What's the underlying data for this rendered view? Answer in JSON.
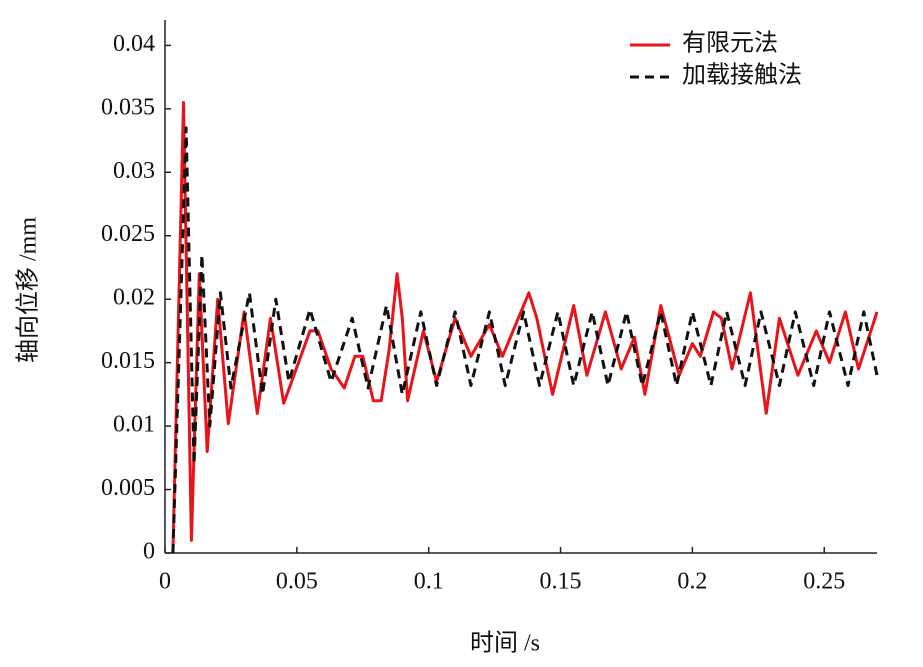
{
  "chart_data": {
    "type": "line",
    "xlabel": "时间 /s",
    "ylabel": "轴向位移 /mm",
    "xlim": [
      0,
      0.27
    ],
    "xticks": [
      0,
      0.05,
      0.1,
      0.15,
      0.2,
      0.25
    ],
    "ylim": [
      0,
      0.042
    ],
    "yticks": [
      0,
      0.005,
      0.01,
      0.015,
      0.02,
      0.025,
      0.03,
      0.035,
      0.04
    ],
    "legend": "upper right",
    "series": [
      {
        "name": "有限元法",
        "color": "#e8141a",
        "dash": "solid",
        "x": [
          0.003,
          0.007,
          0.01,
          0.013,
          0.016,
          0.02,
          0.024,
          0.03,
          0.035,
          0.04,
          0.045,
          0.048,
          0.055,
          0.058,
          0.063,
          0.068,
          0.072,
          0.075,
          0.079,
          0.082,
          0.085,
          0.088,
          0.09,
          0.092,
          0.098,
          0.103,
          0.11,
          0.116,
          0.123,
          0.128,
          0.138,
          0.141,
          0.147,
          0.155,
          0.16,
          0.167,
          0.173,
          0.178,
          0.182,
          0.188,
          0.195,
          0.2,
          0.203,
          0.208,
          0.211,
          0.215,
          0.222,
          0.228,
          0.233,
          0.24,
          0.247,
          0.252,
          0.258,
          0.263,
          0.27
        ],
        "values": [
          0,
          0.0355,
          0.001,
          0.022,
          0.008,
          0.02,
          0.0102,
          0.019,
          0.011,
          0.0185,
          0.0118,
          0.0135,
          0.0175,
          0.0175,
          0.0145,
          0.013,
          0.0155,
          0.0155,
          0.012,
          0.012,
          0.016,
          0.022,
          0.0185,
          0.012,
          0.0175,
          0.0135,
          0.0185,
          0.0155,
          0.018,
          0.0155,
          0.0205,
          0.0185,
          0.0125,
          0.0195,
          0.014,
          0.019,
          0.0145,
          0.017,
          0.0125,
          0.0195,
          0.014,
          0.0165,
          0.0155,
          0.019,
          0.0185,
          0.0145,
          0.0205,
          0.011,
          0.0185,
          0.014,
          0.0175,
          0.015,
          0.019,
          0.0145,
          0.019
        ]
      },
      {
        "name": "加载接触法",
        "color": "#111111",
        "dash": "dashed",
        "x": [
          0.003,
          0.006,
          0.008,
          0.011,
          0.014,
          0.017,
          0.021,
          0.025,
          0.032,
          0.037,
          0.042,
          0.047,
          0.055,
          0.063,
          0.071,
          0.077,
          0.084,
          0.09,
          0.097,
          0.103,
          0.11,
          0.116,
          0.123,
          0.129,
          0.136,
          0.142,
          0.149,
          0.155,
          0.162,
          0.168,
          0.175,
          0.181,
          0.188,
          0.194,
          0.2,
          0.207,
          0.213,
          0.22,
          0.226,
          0.233,
          0.239,
          0.246,
          0.252,
          0.259,
          0.265,
          0.27
        ],
        "values": [
          0,
          0.02,
          0.0335,
          0.007,
          0.0235,
          0.01,
          0.0205,
          0.013,
          0.0205,
          0.0125,
          0.02,
          0.0135,
          0.0192,
          0.0135,
          0.0185,
          0.013,
          0.0195,
          0.0125,
          0.019,
          0.0132,
          0.019,
          0.0132,
          0.019,
          0.0132,
          0.019,
          0.0132,
          0.019,
          0.0132,
          0.019,
          0.0132,
          0.019,
          0.0132,
          0.019,
          0.0132,
          0.019,
          0.0132,
          0.019,
          0.0132,
          0.019,
          0.0132,
          0.019,
          0.0132,
          0.019,
          0.0132,
          0.019,
          0.014
        ]
      }
    ]
  }
}
